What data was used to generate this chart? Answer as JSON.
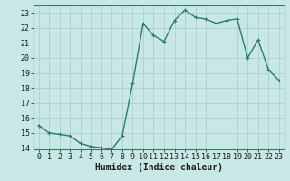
{
  "title": "",
  "xlabel": "Humidex (Indice chaleur)",
  "ylabel": "",
  "x_values": [
    0,
    1,
    2,
    3,
    4,
    5,
    6,
    7,
    8,
    9,
    10,
    11,
    12,
    13,
    14,
    15,
    16,
    17,
    18,
    19,
    20,
    21,
    22,
    23
  ],
  "y_values": [
    15.5,
    15.0,
    14.9,
    14.8,
    14.3,
    14.1,
    14.0,
    13.9,
    14.8,
    18.3,
    22.3,
    21.5,
    21.1,
    22.5,
    23.2,
    22.7,
    22.6,
    22.3,
    22.5,
    22.6,
    20.0,
    21.2,
    19.2,
    18.5
  ],
  "line_color": "#2a7a6e",
  "marker_color": "#2a7a6e",
  "bg_color": "#c8e8e5",
  "grid_color": "#a8ccc9",
  "plot_bg": "#c8e8e5",
  "outer_bg": "#c8e8e5",
  "ylim": [
    13.9,
    23.5
  ],
  "xlim": [
    -0.5,
    23.5
  ],
  "yticks": [
    14,
    15,
    16,
    17,
    18,
    19,
    20,
    21,
    22,
    23
  ],
  "xticks": [
    0,
    1,
    2,
    3,
    4,
    5,
    6,
    7,
    8,
    9,
    10,
    11,
    12,
    13,
    14,
    15,
    16,
    17,
    18,
    19,
    20,
    21,
    22,
    23
  ],
  "tick_fontsize": 6.0,
  "xlabel_fontsize": 7.0,
  "linewidth": 1.0,
  "markersize": 3.5,
  "markeredgewidth": 0.8
}
